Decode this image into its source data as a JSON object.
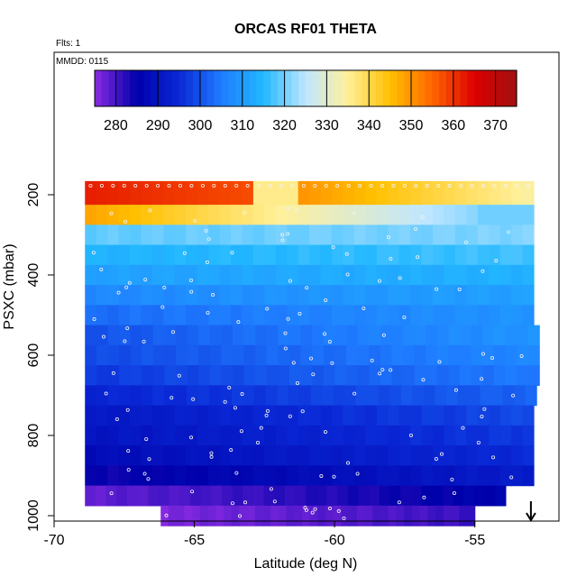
{
  "chart_data": {
    "type": "heatmap",
    "title": "ORCAS RF01 THETA",
    "flights_label": "Flts: 1",
    "date_label": "MMDD: 0115",
    "xlabel": "Latitude (deg N)",
    "ylabel": "PSXC (mbar)",
    "xlim": [
      -70,
      -52
    ],
    "ylim": [
      1000,
      100
    ],
    "x_ticks": [
      -70,
      -65,
      -60,
      -55
    ],
    "y_ticks": [
      200,
      400,
      600,
      800,
      1000
    ],
    "colorbar": {
      "min": 275,
      "max": 375,
      "ticks": [
        280,
        290,
        300,
        310,
        320,
        330,
        340,
        350,
        360,
        370
      ],
      "colors": [
        "#8a2be2",
        "#0000aa",
        "#0a28d6",
        "#1f7cff",
        "#22b8ff",
        "#bfe6ff",
        "#fff09a",
        "#ffc000",
        "#ff6600",
        "#dd0000",
        "#a01010"
      ]
    },
    "pressure_levels": [
      175,
      225,
      275,
      325,
      375,
      425,
      475,
      525,
      575,
      625,
      675,
      725,
      775,
      825,
      875,
      925,
      975
    ],
    "rows": [
      {
        "p": 200,
        "x0": -68.9,
        "x1": -52.9,
        "theta": 350,
        "left": 362,
        "right": 335
      },
      {
        "p": 250,
        "x0": -68.9,
        "x1": -52.9,
        "theta": 330,
        "left": 348,
        "right": 322
      },
      {
        "p": 300,
        "x0": -68.9,
        "x1": -52.9,
        "theta": 320,
        "left": 319,
        "right": 321
      },
      {
        "p": 350,
        "x0": -68.9,
        "x1": -52.9,
        "theta": 315,
        "left": 314,
        "right": 317
      },
      {
        "p": 400,
        "x0": -68.9,
        "x1": -52.9,
        "theta": 312,
        "left": 311,
        "right": 314
      },
      {
        "p": 450,
        "x0": -68.9,
        "x1": -52.9,
        "theta": 309,
        "left": 307,
        "right": 311
      },
      {
        "p": 500,
        "x0": -68.9,
        "x1": -52.9,
        "theta": 306,
        "left": 303,
        "right": 309
      },
      {
        "p": 550,
        "x0": -68.9,
        "x1": -52.7,
        "theta": 303,
        "left": 300,
        "right": 309
      },
      {
        "p": 600,
        "x0": -68.9,
        "x1": -52.7,
        "theta": 301,
        "left": 299,
        "right": 307
      },
      {
        "p": 650,
        "x0": -68.9,
        "x1": -52.7,
        "theta": 299,
        "left": 297,
        "right": 305
      },
      {
        "p": 700,
        "x0": -68.9,
        "x1": -52.8,
        "theta": 296,
        "left": 294,
        "right": 302
      },
      {
        "p": 750,
        "x0": -68.9,
        "x1": -52.9,
        "theta": 293,
        "left": 291,
        "right": 299
      },
      {
        "p": 800,
        "x0": -68.9,
        "x1": -52.9,
        "theta": 290,
        "left": 290,
        "right": 297
      },
      {
        "p": 850,
        "x0": -68.9,
        "x1": -52.9,
        "theta": 288,
        "left": 288,
        "right": 295
      },
      {
        "p": 900,
        "x0": -68.9,
        "x1": -52.9,
        "theta": 285,
        "left": 284,
        "right": 292
      },
      {
        "p": 950,
        "x0": -68.9,
        "x1": -53.9,
        "theta": 281,
        "left": 278,
        "right": 286
      },
      {
        "p": 1000,
        "x0": -66.2,
        "x1": -55.0,
        "theta": 279,
        "left": 276,
        "right": 281
      }
    ],
    "marker": {
      "x": -53.0,
      "direction": "down"
    }
  }
}
